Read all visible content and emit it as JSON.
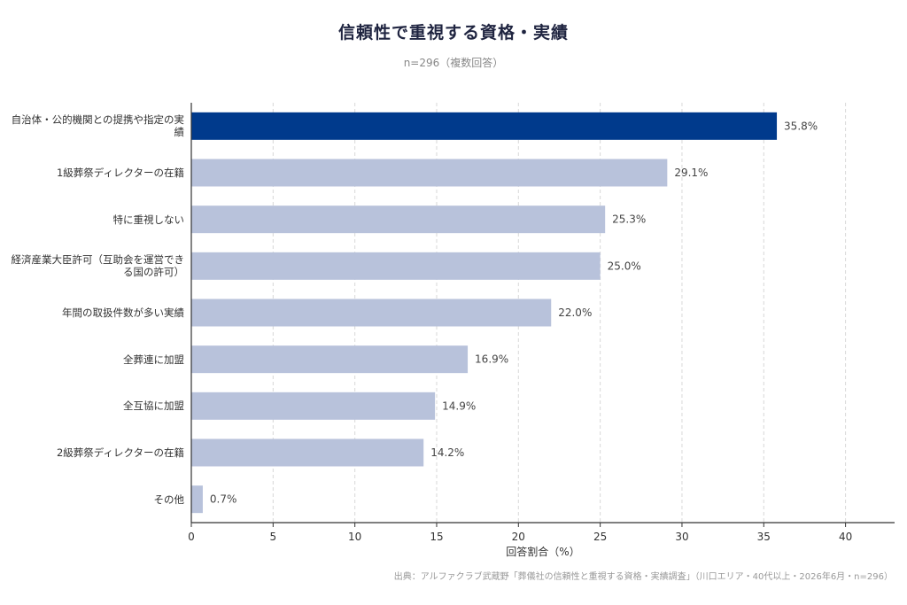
{
  "chart_data": {
    "type": "bar",
    "orientation": "horizontal",
    "title": "信頼性で重視する資格・実績",
    "subtitle": "n=296（複数回答）",
    "xlabel": "回答割合（%）",
    "ylabel": "",
    "xlim": [
      0,
      43
    ],
    "xticks": [
      "0",
      "5",
      "10",
      "15",
      "20",
      "25",
      "30",
      "35",
      "40"
    ],
    "grid": "vertical dashed",
    "categories": [
      "自治体・公的機関との提携や指定の実績",
      "1級葬祭ディレクターの在籍",
      "特に重視しない",
      "経済産業大臣許可（互助会を運営できる国の許可）",
      "年間の取扱件数が多い実績",
      "全葬連に加盟",
      "全互協に加盟",
      "2級葬祭ディレクターの在籍",
      "その他"
    ],
    "values": [
      35.8,
      29.1,
      25.3,
      25.0,
      22.0,
      16.9,
      14.9,
      14.2,
      0.7
    ],
    "value_labels": [
      "35.8%",
      "29.1%",
      "25.3%",
      "25.0%",
      "22.0%",
      "16.9%",
      "14.9%",
      "14.2%",
      "0.7%"
    ],
    "highlight_index": 0,
    "colors": {
      "highlight": "#003a8c",
      "default": "#b8c2db",
      "axis": "#333333",
      "grid": "#d8d8d8"
    },
    "source": "出典：アルファクラブ武蔵野「葬儀社の信頼性と重視する資格・実績調査」（川口エリア・40代以上・2026年6月・n=296）"
  }
}
